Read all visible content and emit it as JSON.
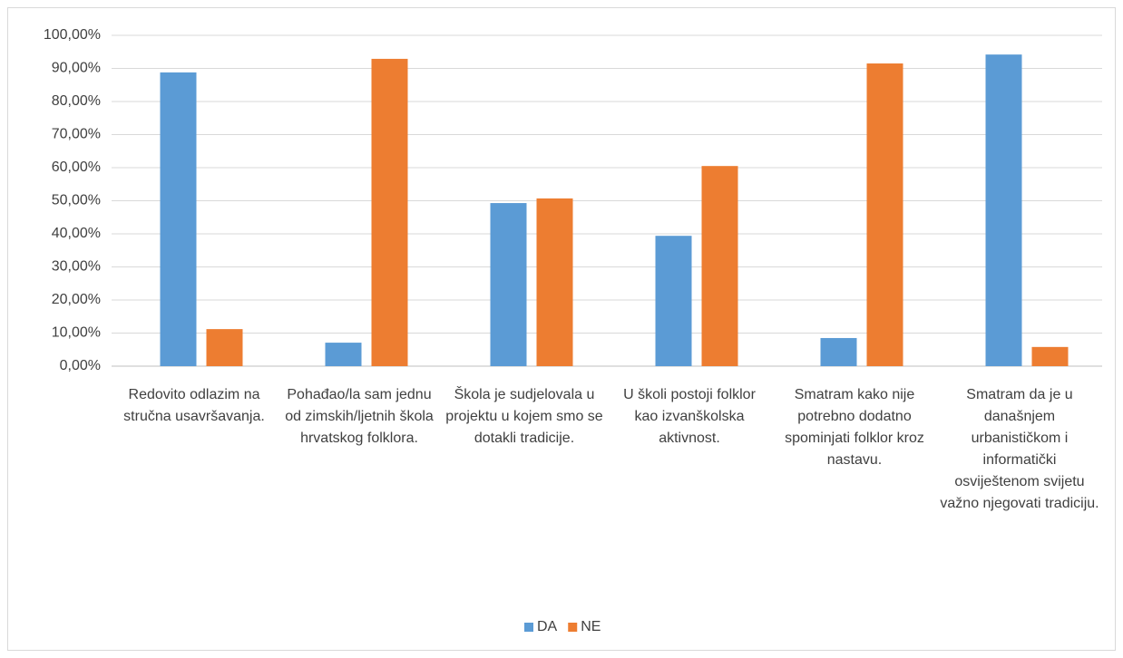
{
  "chart_data": {
    "type": "bar",
    "categories": [
      "Redovito odlazim na stručna usavršavanja.",
      "Pohađao/la sam jednu od zimskih/ljetnih škola hrvatskog folklora.",
      "Škola je sudjelovala u projektu u kojem smo se dotakli tradicije.",
      "U školi postoji folklor kao izvanškolska aktivnost.",
      "Smatram kako nije potrebno dodatno spominjati folklor kroz nastavu.",
      "Smatram da je u današnjem urbanističkom i informatički osviještenom svijetu važno njegovati tradiciju."
    ],
    "series": [
      {
        "name": "DA",
        "color": "#5b9bd5",
        "values": [
          88.8,
          7.1,
          49.3,
          39.4,
          8.5,
          94.2
        ]
      },
      {
        "name": "NE",
        "color": "#ed7d31",
        "values": [
          11.2,
          92.9,
          50.7,
          60.5,
          91.5,
          5.8
        ]
      }
    ],
    "ylim": [
      0,
      100
    ],
    "yticks": [
      {
        "value": 0,
        "label": "0,00%"
      },
      {
        "value": 10,
        "label": "10,00%"
      },
      {
        "value": 20,
        "label": "20,00%"
      },
      {
        "value": 30,
        "label": "30,00%"
      },
      {
        "value": 40,
        "label": "40,00%"
      },
      {
        "value": 50,
        "label": "50,00%"
      },
      {
        "value": 60,
        "label": "60,00%"
      },
      {
        "value": 70,
        "label": "70,00%"
      },
      {
        "value": 80,
        "label": "80,00%"
      },
      {
        "value": 90,
        "label": "90,00%"
      },
      {
        "value": 100,
        "label": "100,00%"
      }
    ],
    "grid": true,
    "legend": "bottom"
  }
}
